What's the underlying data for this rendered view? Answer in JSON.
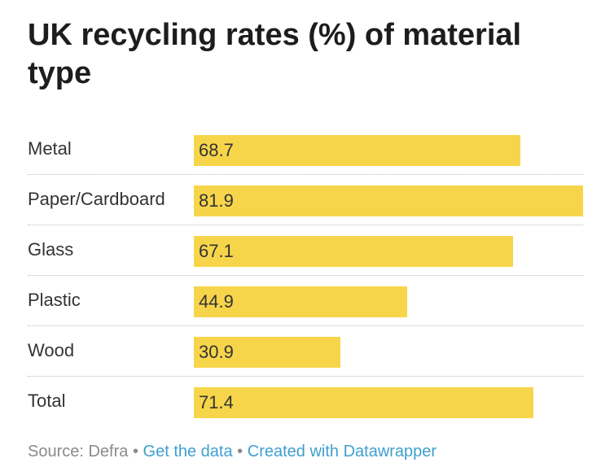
{
  "chart_data": {
    "type": "bar",
    "orientation": "horizontal",
    "title": "UK recycling rates (%) of material type",
    "categories": [
      "Metal",
      "Paper/Cardboard",
      "Glass",
      "Plastic",
      "Wood",
      "Total"
    ],
    "values": [
      68.7,
      81.9,
      67.1,
      44.9,
      30.9,
      71.4
    ],
    "value_labels": [
      "68.7",
      "81.9",
      "67.1",
      "44.9",
      "30.9",
      "71.4"
    ],
    "xlim": [
      0,
      81.9
    ],
    "grid": false,
    "bar_color": "#f7d54a"
  },
  "footer": {
    "source": "Source: Defra",
    "separator": "•",
    "get_data": "Get the data",
    "created_with": "Created with Datawrapper"
  },
  "colors": {
    "bar": "#f7d54a",
    "link": "#3f9fcf",
    "footer_text": "#8a8a8a"
  }
}
